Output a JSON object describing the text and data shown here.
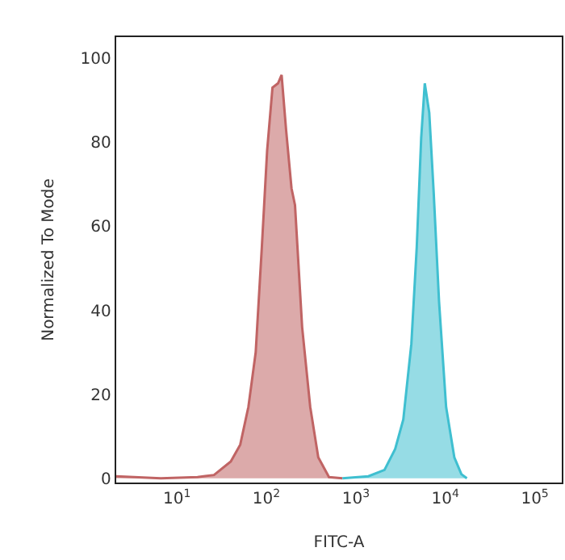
{
  "chart_data": {
    "type": "area",
    "xlabel": "FITC-A",
    "ylabel": "Normalized To Mode",
    "log": "x",
    "grid": false,
    "xlim": [
      2.1,
      200000
    ],
    "ylim": [
      -1,
      105
    ],
    "xticks": [
      {
        "value": 10,
        "label": "10$^{1}$"
      },
      {
        "value": 100,
        "label": "10$^{2}$"
      },
      {
        "value": 1000,
        "label": "10$^{3}$"
      },
      {
        "value": 10000,
        "label": "10$^{4}$"
      },
      {
        "value": 100000,
        "label": "10$^{5}$"
      }
    ],
    "yticks": [
      0,
      20,
      40,
      60,
      80,
      100
    ],
    "series": [
      {
        "color": "#c06464",
        "x": [
          2.1,
          6.6,
          17,
          26,
          40,
          51,
          63,
          76,
          89,
          102,
          117,
          135,
          148,
          166,
          191,
          209,
          251,
          309,
          380,
          501,
          708
        ],
        "values": [
          0.5,
          0,
          0.3,
          0.8,
          4,
          8,
          17,
          30,
          55,
          78,
          93,
          94,
          96,
          83,
          69,
          65,
          36,
          17,
          5,
          0.3,
          0
        ]
      },
      {
        "color": "#3fbfd0",
        "x": [
          708,
          1380,
          2090,
          2750,
          3390,
          4170,
          4790,
          5370,
          5890,
          6610,
          7410,
          8510,
          10200,
          12600,
          15100,
          17400
        ],
        "values": [
          0,
          0.5,
          2,
          7,
          14,
          32,
          55,
          81,
          94,
          87,
          68,
          42,
          17,
          5,
          1,
          0
        ]
      }
    ]
  }
}
